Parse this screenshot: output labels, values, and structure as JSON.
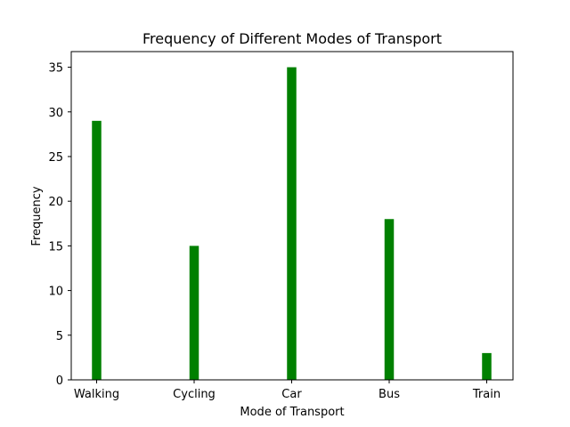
{
  "chart_data": {
    "type": "bar",
    "title": "Frequency of Different Modes of Transport",
    "xlabel": "Mode of Transport",
    "ylabel": "Frequency",
    "categories": [
      "Walking",
      "Cycling",
      "Car",
      "Bus",
      "Train"
    ],
    "values": [
      29,
      15,
      35,
      18,
      3
    ],
    "ylim": [
      0,
      36.75
    ],
    "yticks": [
      0,
      5,
      10,
      15,
      20,
      25,
      30,
      35
    ],
    "bar_color": "#008000",
    "grid": false,
    "legend": "none"
  }
}
